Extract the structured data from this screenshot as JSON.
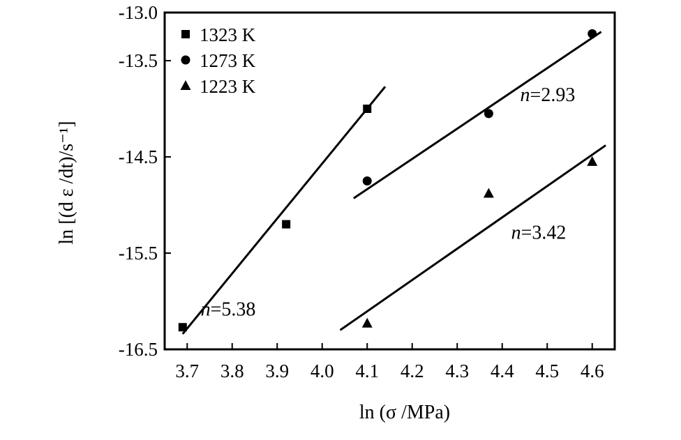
{
  "chart_data": {
    "type": "scatter",
    "xlabel": "ln (σ /MPa)",
    "ylabel": "ln [(d ε /dt)/s⁻¹]",
    "xlim": [
      3.65,
      4.65
    ],
    "ylim": [
      -16.5,
      -13.0
    ],
    "xticks": [
      "3.7",
      "3.8",
      "3.9",
      "4.0",
      "4.1",
      "4.2",
      "4.3",
      "4.4",
      "4.5",
      "4.6"
    ],
    "yticks": [
      "-13.0",
      "-13.5",
      "-14.5",
      "-15.5",
      "-16.5"
    ],
    "legend_position": "top-left",
    "grid": false,
    "series": [
      {
        "name": "1323 K",
        "marker": "square",
        "points": [
          [
            3.69,
            -16.27
          ],
          [
            3.92,
            -15.2
          ],
          [
            4.1,
            -14.0
          ]
        ],
        "fit": {
          "x": [
            3.69,
            4.14
          ],
          "y": [
            -16.34,
            -13.77
          ]
        },
        "annotation": {
          "prefix": "n",
          "text": "=5.38",
          "at": [
            3.73,
            -16.15
          ]
        }
      },
      {
        "name": "1273 K",
        "marker": "circle",
        "points": [
          [
            4.1,
            -14.75
          ],
          [
            4.37,
            -14.05
          ],
          [
            4.6,
            -13.22
          ]
        ],
        "fit": {
          "x": [
            4.07,
            4.62
          ],
          "y": [
            -14.93,
            -13.2
          ]
        },
        "annotation": {
          "prefix": "n",
          "text": "=2.93",
          "at": [
            4.44,
            -13.92
          ]
        }
      },
      {
        "name": "1223 K",
        "marker": "triangle",
        "points": [
          [
            4.1,
            -16.23
          ],
          [
            4.37,
            -14.88
          ],
          [
            4.6,
            -14.55
          ]
        ],
        "fit": {
          "x": [
            4.04,
            4.63
          ],
          "y": [
            -16.3,
            -14.38
          ]
        },
        "annotation": {
          "prefix": "n",
          "text": "=3.42",
          "at": [
            4.42,
            -15.35
          ]
        }
      }
    ]
  }
}
